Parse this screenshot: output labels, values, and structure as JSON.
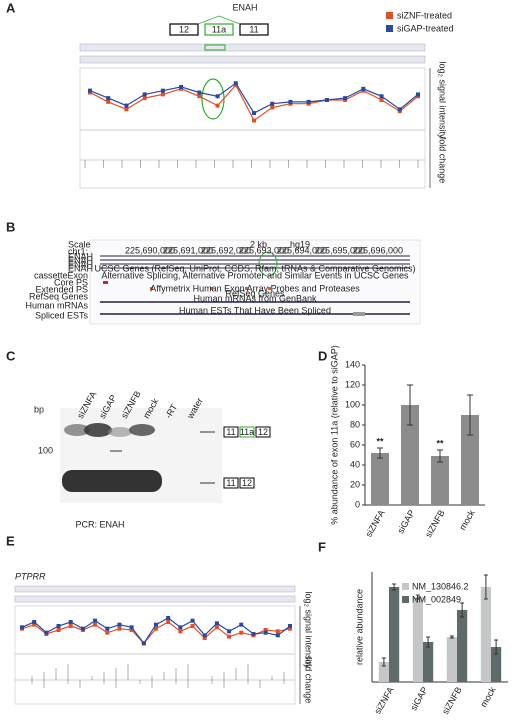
{
  "panel_labels": [
    "A",
    "B",
    "C",
    "D",
    "E",
    "F"
  ],
  "chart_data": [
    {
      "type": "line",
      "title": "ENAH",
      "exons": [
        "12",
        "11a",
        "11"
      ],
      "ylabel": "log₂ signal intensity",
      "y2label": "fold change",
      "ylim": [
        6,
        9
      ],
      "series": [
        {
          "name": "siZNF-treated",
          "color": "#e0502a",
          "values": [
            7.9,
            7.4,
            7.0,
            7.6,
            7.8,
            8.1,
            7.7,
            7.2,
            8.3,
            6.4,
            7.1,
            7.3,
            7.3,
            7.5,
            7.5,
            8.0,
            7.5,
            6.9,
            7.7
          ]
        },
        {
          "name": "siGAP-treated",
          "color": "#2a4aa0",
          "values": [
            8.0,
            7.6,
            7.2,
            7.8,
            8.0,
            8.2,
            7.9,
            7.7,
            8.4,
            6.8,
            7.3,
            7.4,
            7.4,
            7.5,
            7.6,
            8.1,
            7.7,
            7.0,
            7.8
          ]
        }
      ]
    },
    {
      "type": "bar",
      "ylabel": "% abundance of exon 11a (relative to siGAP)",
      "color": "#8c8c8c",
      "categories": [
        "siZNFA",
        "siGAP",
        "siZNFB",
        "mock"
      ],
      "values": [
        52,
        100,
        49,
        90
      ],
      "errors": [
        5,
        20,
        6,
        20
      ],
      "annotations": [
        "**",
        null,
        "**",
        null
      ],
      "ylim": [
        0,
        140
      ],
      "yticks": [
        0,
        20,
        40,
        60,
        80,
        100,
        120,
        140
      ]
    },
    {
      "type": "line",
      "title": "PTPRR",
      "ylabel": "log₂ signal intensity",
      "y2label": "fold change",
      "ylim": [
        6,
        9
      ],
      "series": [
        {
          "color": "#e0502a",
          "values": [
            7.6,
            7.9,
            7.2,
            7.5,
            7.8,
            7.5,
            7.9,
            7.3,
            7.6,
            7.5,
            6.5,
            7.6,
            8.1,
            7.4,
            7.8,
            6.9,
            7.7,
            7.0,
            7.3,
            7.1,
            7.5,
            7.4,
            7.6
          ]
        },
        {
          "color": "#2a4aa0",
          "values": [
            7.7,
            8.1,
            7.3,
            7.8,
            8.1,
            7.6,
            8.2,
            7.6,
            7.9,
            7.7,
            6.5,
            7.9,
            8.4,
            7.7,
            8.2,
            7.1,
            8.0,
            7.4,
            7.9,
            7.2,
            7.3,
            7.1,
            7.8
          ]
        }
      ]
    },
    {
      "type": "grouped_bar",
      "ylabel": "relative abundance",
      "ylim": [
        0,
        1.1
      ],
      "categories": [
        "siZNFA",
        "siGAP",
        "siZNFB",
        "mock"
      ],
      "series": [
        {
          "name": "NM_130846.2",
          "color": "#c4c6c8",
          "values": [
            0.2,
            0.85,
            0.45,
            0.95
          ],
          "errors": [
            0.04,
            0.02,
            0.01,
            0.12
          ]
        },
        {
          "name": "NM_002849",
          "color": "#5f6a6a",
          "values": [
            0.95,
            0.4,
            0.72,
            0.35
          ],
          "errors": [
            0.03,
            0.05,
            0.07,
            0.07
          ]
        }
      ]
    }
  ],
  "panel_b": {
    "scale": "Scale",
    "chrom": "chr1:",
    "kb": "2 kb",
    "assembly": "hg19",
    "coords": [
      "225,690,000",
      "225,691,000",
      "225,692,000",
      "225,693,000",
      "225,694,000",
      "225,695,000",
      "225,696,000"
    ],
    "tracks": [
      "ENAH",
      "ENAH",
      "ENAH",
      "ENAH"
    ],
    "descriptions": [
      "UCSC Genes (RefSeq, UniProt, CCDS, Rfam, tRNAs & Comparative Genomics)",
      "Alternative Splicing, Alternative Promoter and Similar Events in UCSC Genes",
      "Affymetrix Human Exon Array Probes and Proteases",
      "RefSeq Genes",
      "Human mRNAs from GenBank",
      "Human ESTs That Have Been Spliced"
    ],
    "track_labels": [
      "cassetteExon",
      "Core PS",
      "Extended PS",
      "RefSeq Genes",
      "Human mRNAs",
      "Spliced ESTs"
    ]
  },
  "panel_c": {
    "lanes": [
      "siZNFA",
      "siGAP",
      "siZNFB",
      "mock",
      "-RT",
      "water"
    ],
    "bp": "bp",
    "marker": "100",
    "caption": "PCR: ENAH",
    "long_exons": [
      "11",
      "11a",
      "12"
    ],
    "short_exons": [
      "11",
      "12"
    ]
  }
}
